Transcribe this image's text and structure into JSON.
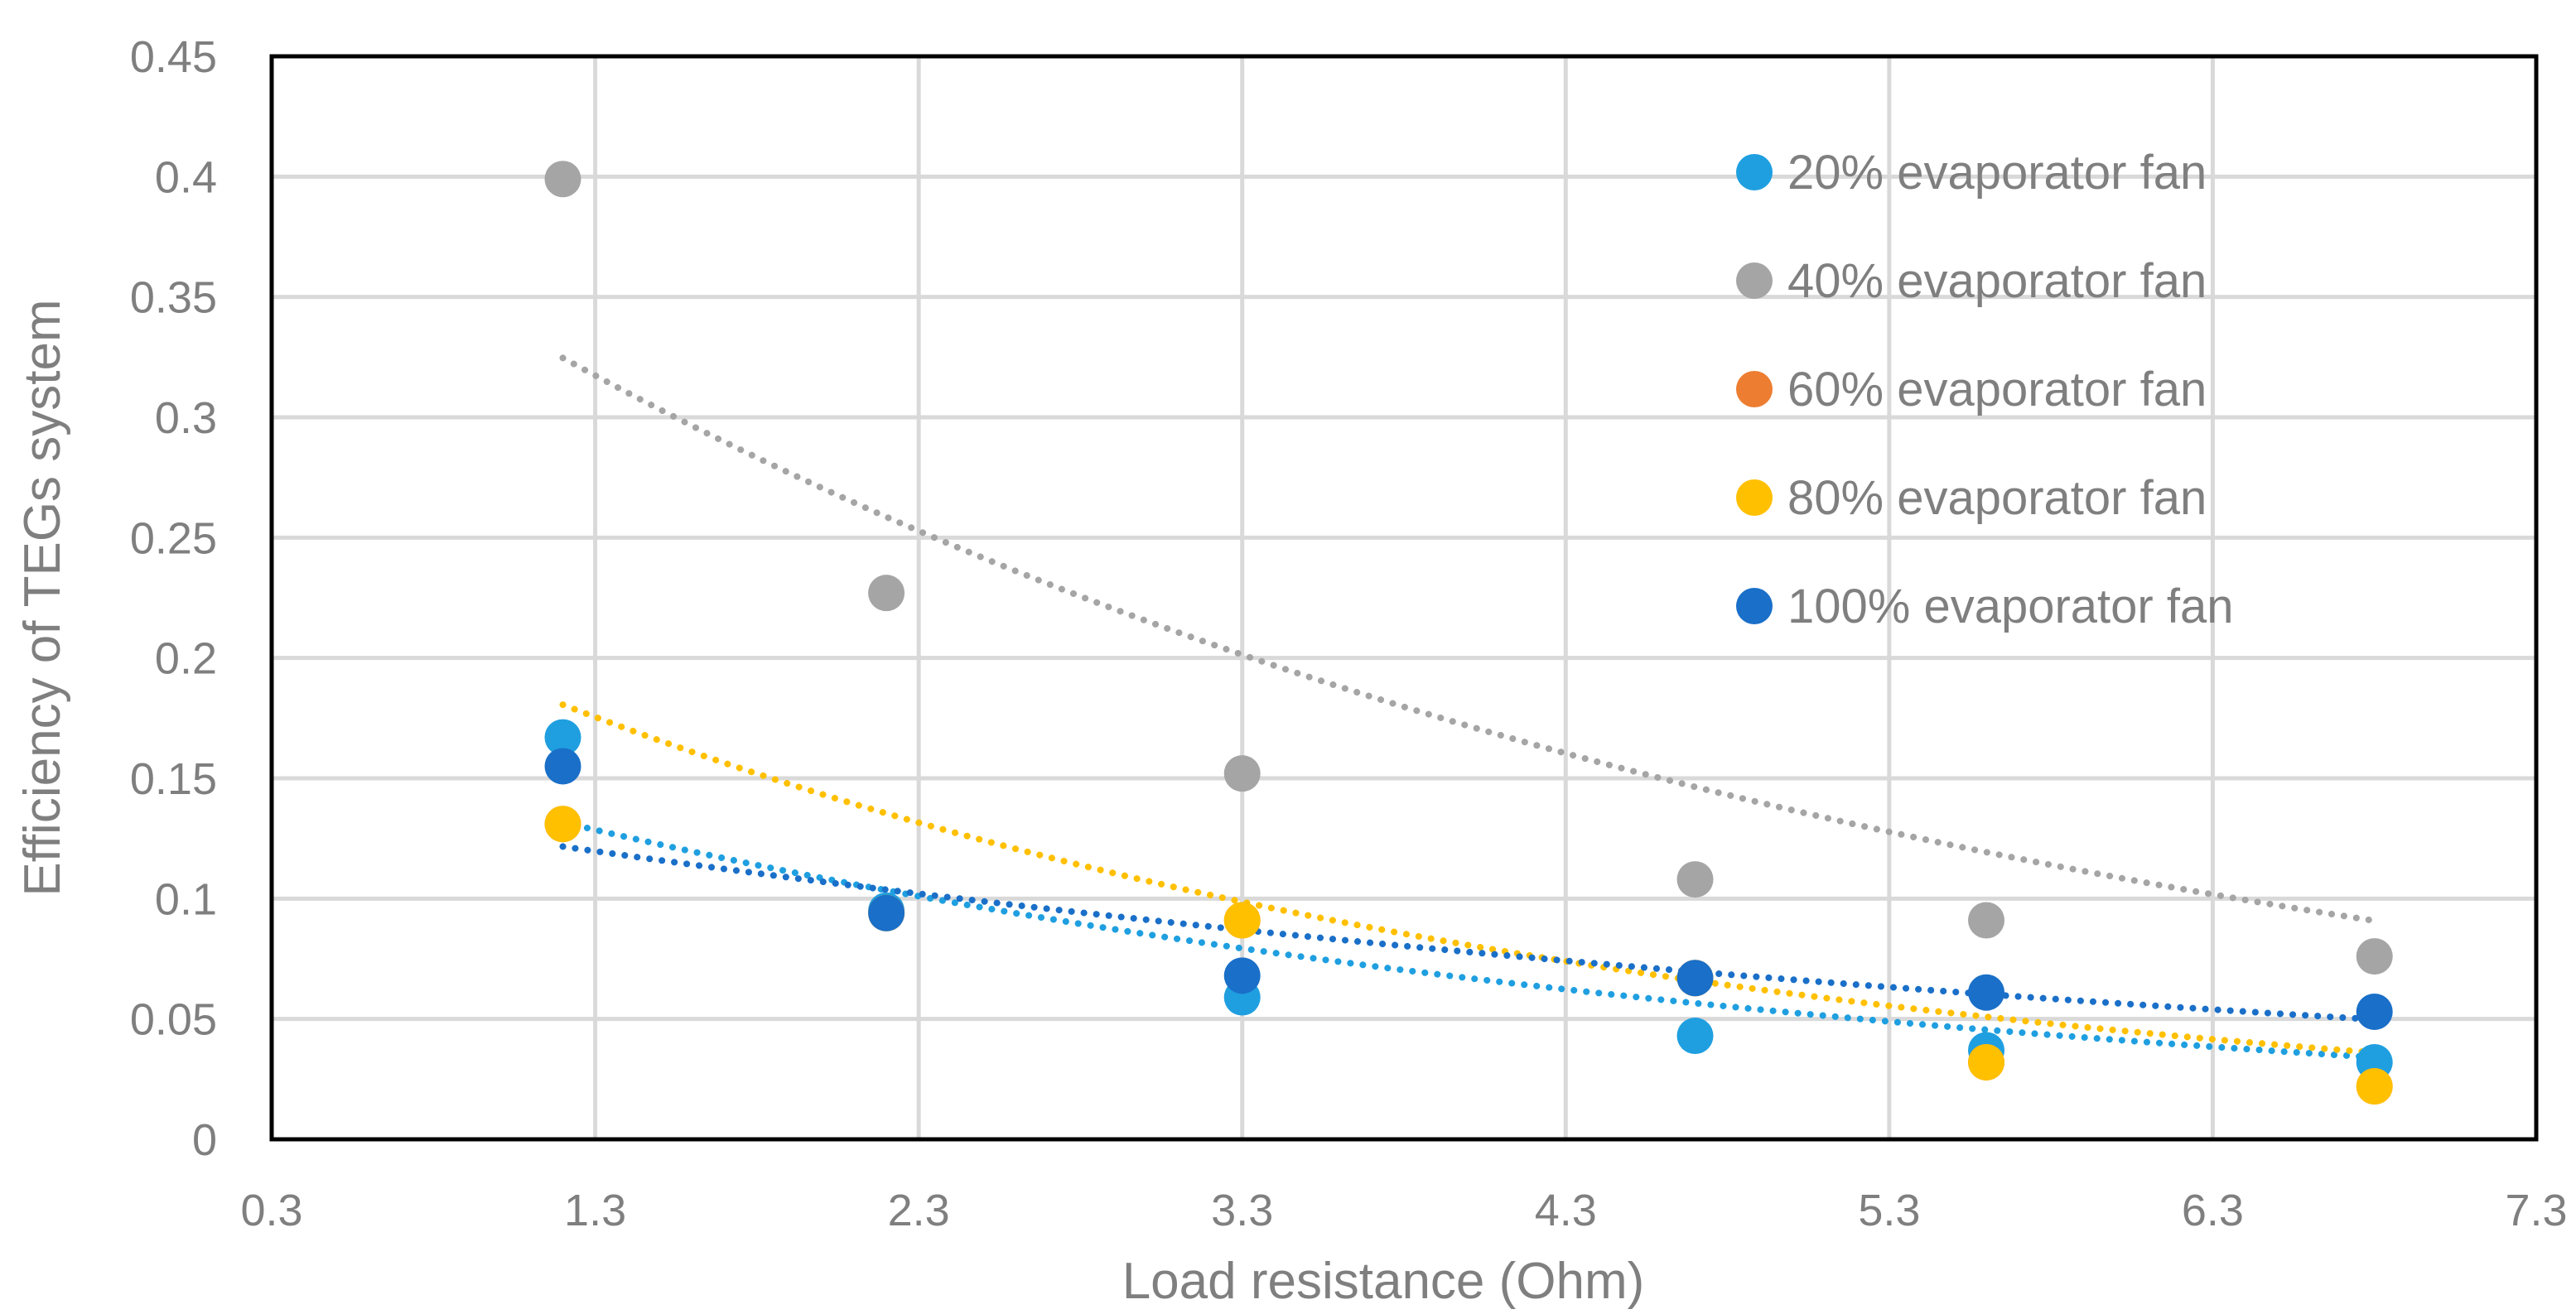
{
  "chart_data": {
    "type": "scatter",
    "title": "",
    "xlabel": "Load resistance (Ohm)",
    "ylabel": "Efficiency of TEGs system",
    "xlim": [
      0.3,
      7.3
    ],
    "ylim": [
      0,
      0.45
    ],
    "xticks": [
      0.3,
      1.3,
      2.3,
      3.3,
      4.3,
      5.3,
      6.3,
      7.3
    ],
    "yticks": [
      0,
      0.05,
      0.1,
      0.15,
      0.2,
      0.25,
      0.3,
      0.35,
      0.4,
      0.45
    ],
    "xtick_labels": [
      "0.3",
      "1.3",
      "2.3",
      "3.3",
      "4.3",
      "5.3",
      "6.3",
      "7.3"
    ],
    "ytick_labels": [
      "0",
      "0.05",
      "0.1",
      "0.15",
      "0.2",
      "0.25",
      "0.3",
      "0.35",
      "0.4",
      "0.45"
    ],
    "grid": true,
    "legend_position": "top-right",
    "trendline": "exponential, dotted",
    "x": [
      1.2,
      2.2,
      3.3,
      4.7,
      5.6,
      6.8
    ],
    "series": [
      {
        "name": "20% evaporator fan",
        "color": "#1f9fe0",
        "values": [
          0.167,
          0.095,
          0.059,
          0.043,
          0.037,
          0.032
        ],
        "trend": {
          "a": 0.176,
          "b": -0.2415
        }
      },
      {
        "name": "40% evaporator fan",
        "color": "#a5a5a5",
        "values": [
          0.399,
          0.227,
          0.152,
          0.108,
          0.091,
          0.076
        ],
        "trend": {
          "a": 0.4266,
          "b": -0.2275
        }
      },
      {
        "name": "60% evaporator fan",
        "color": "#ed7d31",
        "values": [
          0.131,
          0.094,
          0.091,
          0.067,
          0.032,
          0.022
        ],
        "trend": null
      },
      {
        "name": "80% evaporator fan",
        "color": "#ffc000",
        "values": [
          0.131,
          0.094,
          0.091,
          0.067,
          0.032,
          0.022
        ],
        "trend": {
          "a": 0.2551,
          "b": -0.2879
        }
      },
      {
        "name": "100% evaporator fan",
        "color": "#1a6fc8",
        "values": [
          0.155,
          0.094,
          0.068,
          0.067,
          0.061,
          0.053
        ],
        "trend": {
          "a": 0.1473,
          "b": -0.1595
        }
      }
    ]
  }
}
